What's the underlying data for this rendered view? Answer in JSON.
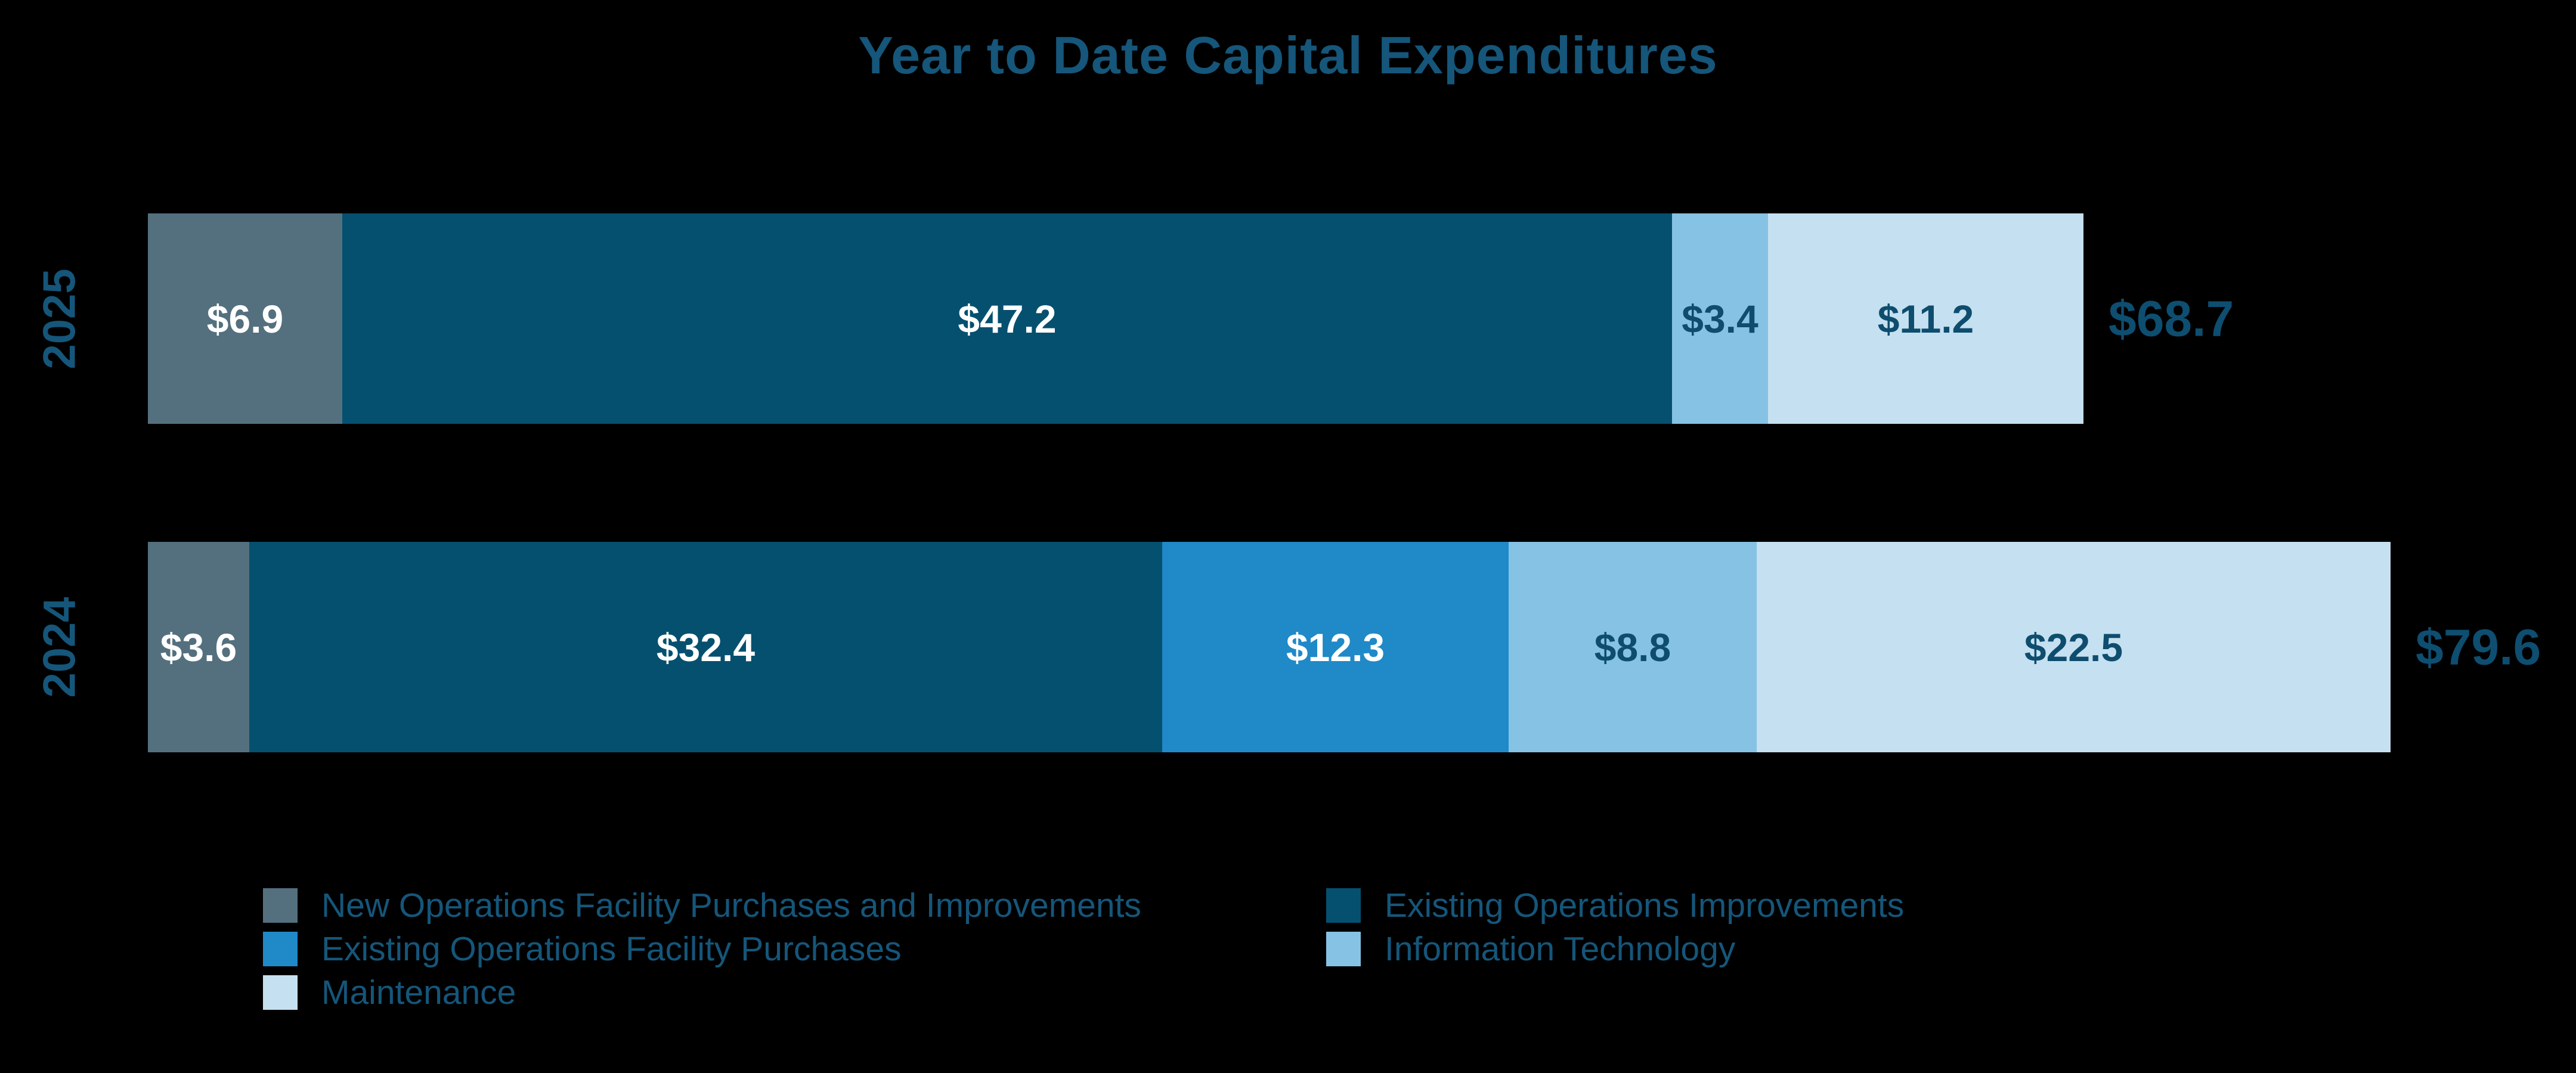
{
  "chart_data": {
    "type": "bar",
    "variant": "horizontal-stacked",
    "title": "Year to Date Capital Expenditures",
    "categories": [
      "2025",
      "2024"
    ],
    "series": [
      {
        "name": "New Operations Facility Purchases and Improvements",
        "color": "#54707F",
        "label_color": "#FFFFFF",
        "values": [
          6.9,
          3.6
        ]
      },
      {
        "name": "Existing Operations Improvements",
        "color": "#05506F",
        "label_color": "#FFFFFF",
        "values": [
          47.2,
          32.4
        ]
      },
      {
        "name": "Existing Operations Facility Purchases",
        "color": "#2089C8",
        "label_color": "#FFFFFF",
        "values": [
          0,
          12.3
        ]
      },
      {
        "name": "Information Technology",
        "color": "#86C2E3",
        "label_color": "#0E4D6E",
        "values": [
          3.4,
          8.8
        ]
      },
      {
        "name": "Maintenance",
        "color": "#C5E0F0",
        "label_color": "#0E4D6E",
        "values": [
          11.2,
          22.5
        ]
      }
    ],
    "totals": [
      68.7,
      79.6
    ],
    "totals_formatted": [
      "$68.7",
      "$79.6"
    ],
    "value_prefix": "$",
    "segment_labels": {
      "2025": [
        "$6.9",
        "$47.2",
        "$3.4",
        "$11.2"
      ],
      "2024": [
        "$3.6",
        "$32.4",
        "$12.3",
        "$8.8",
        "$22.5"
      ]
    },
    "legend_position": "bottom",
    "legend_columns": 2,
    "grid": false,
    "xlim": [
      0,
      85
    ]
  },
  "colors": {
    "background": "#000000",
    "title_text": "#15567A",
    "year_label_text": "#15567A",
    "total_label_text": "#0E4E70",
    "legend_text": "#15567A"
  }
}
